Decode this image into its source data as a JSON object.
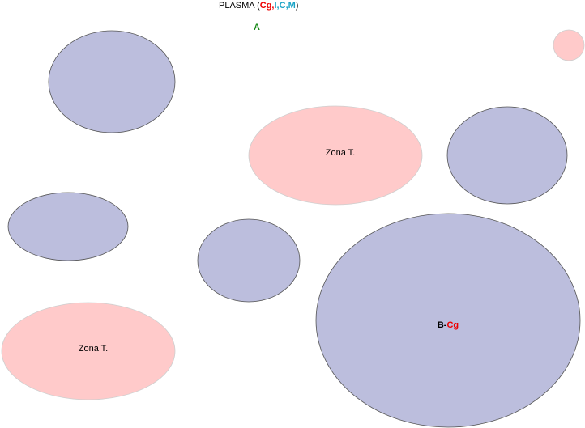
{
  "title": {
    "prefix": "PLASMA (",
    "cg": "Cg",
    "comma1": ",",
    "i": "I",
    "comma2": ",",
    "c": "C",
    "comma3": ",",
    "m": "M",
    "suffix": ")"
  },
  "marker_a": "A",
  "zona_label_1": "Zona T.",
  "zona_label_2": "Zona T.",
  "b_cg_label": {
    "b": "B",
    "dash": "-",
    "cg": "Cg"
  },
  "colors": {
    "blue_fill": "#bcbedd",
    "pink_fill": "#ffcaca",
    "outline_blue": "#555555",
    "outline_pink": "#cfcfcf",
    "red": "#ee0000",
    "cyan": "#1aa3c6",
    "green": "#1a8a1a",
    "black": "#000000"
  }
}
